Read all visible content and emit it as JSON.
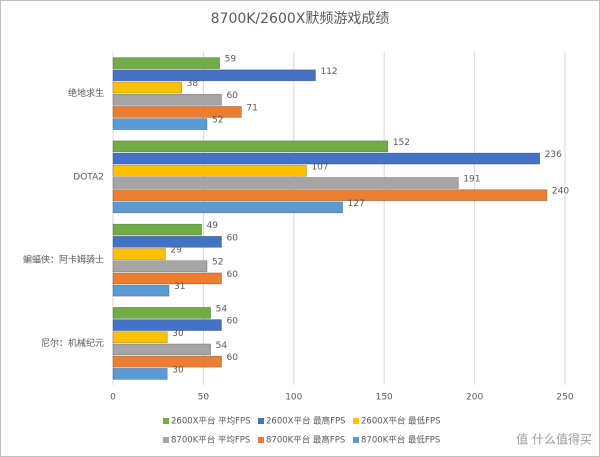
{
  "chart_data": {
    "type": "bar",
    "orientation": "horizontal",
    "title": "8700K/2600X默频游戏成绩",
    "categories": [
      "绝地求生",
      "DOTA2",
      "蝙蝠侠：阿卡姆骑士",
      "尼尔：机械纪元"
    ],
    "series": [
      {
        "name": "2600X平台 平均FPS",
        "color": "#70ad47",
        "values": [
          59,
          152,
          49,
          54
        ]
      },
      {
        "name": "2600X平台 最高FPS",
        "color": "#4472c4",
        "values": [
          112,
          236,
          60,
          60
        ]
      },
      {
        "name": "2600X平台 最低FPS",
        "color": "#ffc000",
        "values": [
          38,
          107,
          29,
          30
        ]
      },
      {
        "name": "8700K平台 平均FPS",
        "color": "#a5a5a5",
        "values": [
          60,
          191,
          52,
          54
        ]
      },
      {
        "name": "8700K平台 最高FPS",
        "color": "#ed7d31",
        "values": [
          71,
          240,
          60,
          60
        ]
      },
      {
        "name": "8700K平台 最低FPS",
        "color": "#5b9bd5",
        "values": [
          52,
          127,
          31,
          30
        ]
      }
    ],
    "xlim": [
      0,
      250
    ],
    "xticks": [
      0,
      50,
      100,
      150,
      200,
      250
    ],
    "grid": true,
    "legend": "bottom",
    "watermark": "值 什么值得买"
  }
}
